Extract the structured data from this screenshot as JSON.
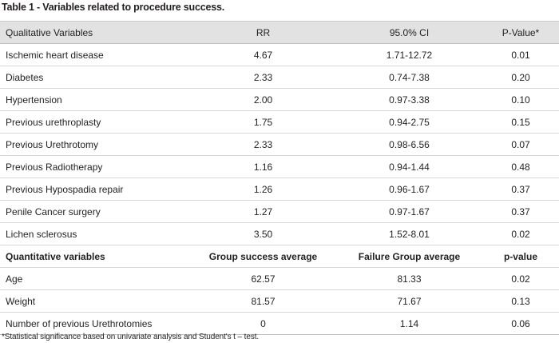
{
  "caption": "Table 1 - Variables related to procedure success.",
  "header": [
    "Qualitative Variables",
    "RR",
    "95.0% CI",
    "P-Value*"
  ],
  "qualitative_rows": [
    [
      "Ischemic heart disease",
      "4.67",
      "1.71-12.72",
      "0.01"
    ],
    [
      "Diabetes",
      "2.33",
      "0.74-7.38",
      "0.20"
    ],
    [
      "Hypertension",
      "2.00",
      "0.97-3.38",
      "0.10"
    ],
    [
      "Previous urethroplasty",
      "1.75",
      "0.94-2.75",
      "0.15"
    ],
    [
      "Previous Urethrotomy",
      "2.33",
      "0.98-6.56",
      "0.07"
    ],
    [
      "Previous Radiotherapy",
      "1.16",
      "0.94-1.44",
      "0.48"
    ],
    [
      "Previous Hypospadia repair",
      "1.26",
      "0.96-1.67",
      "0.37"
    ],
    [
      "Penile Cancer surgery",
      "1.27",
      "0.97-1.67",
      "0.37"
    ],
    [
      "Lichen sclerosus",
      "3.50",
      "1.52-8.01",
      "0.02"
    ]
  ],
  "subheader": [
    "Quantitative variables",
    "Group success average",
    "Failure Group average",
    "p-value"
  ],
  "quantitative_rows": [
    [
      "Age",
      "62.57",
      "81.33",
      "0.02"
    ],
    [
      "Weight",
      "81.57",
      "71.67",
      "0.13"
    ],
    [
      "Number of previous Urethrotomies",
      "0",
      "1.14",
      "0.06"
    ]
  ],
  "footnote": "*Statistical significance based on univariate analysis and Student's t – test."
}
